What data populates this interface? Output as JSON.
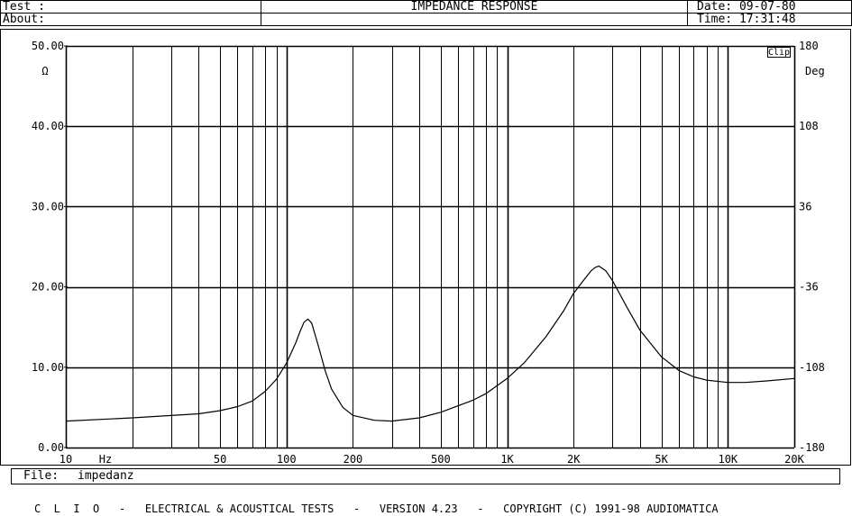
{
  "header": {
    "test_label": "Test :",
    "about_label": "About:",
    "title": "IMPEDANCE RESPONSE",
    "date": "Date: 09-07-80",
    "time": "Time: 17:31:48"
  },
  "file": {
    "label": "File:",
    "name": "impedanz"
  },
  "footer": {
    "text": "C  L  I  O   -   ELECTRICAL & ACOUSTICAL TESTS   -   VERSION 4.23   -   COPYRIGHT (C) 1991-98 AUDIOMATICA"
  },
  "chart_data": {
    "type": "line",
    "title": "IMPEDANCE RESPONSE",
    "xscale": "log",
    "xlim": [
      10,
      20000
    ],
    "ylim": [
      0,
      50
    ],
    "y2lim": [
      -180,
      180
    ],
    "ylabel": "Ω",
    "y2label": "Deg",
    "x_unit_label": "Hz",
    "clip_label": "Clip",
    "grid": true,
    "x_ticks": [
      {
        "v": 10,
        "label": "10"
      },
      {
        "v": 50,
        "label": "50"
      },
      {
        "v": 100,
        "label": "100"
      },
      {
        "v": 200,
        "label": "200"
      },
      {
        "v": 500,
        "label": "500"
      },
      {
        "v": 1000,
        "label": "1K"
      },
      {
        "v": 2000,
        "label": "2K"
      },
      {
        "v": 5000,
        "label": "5K"
      },
      {
        "v": 10000,
        "label": "10K"
      },
      {
        "v": 20000,
        "label": "20K"
      }
    ],
    "y_ticks": [
      {
        "v": 0,
        "label": "0.00"
      },
      {
        "v": 10,
        "label": "10.00"
      },
      {
        "v": 20,
        "label": "20.00"
      },
      {
        "v": 30,
        "label": "30.00"
      },
      {
        "v": 40,
        "label": "40.00"
      },
      {
        "v": 50,
        "label": "50.00"
      }
    ],
    "y2_ticks": [
      {
        "v": -180,
        "label": "-180"
      },
      {
        "v": -108,
        "label": "-108"
      },
      {
        "v": -36,
        "label": "-36"
      },
      {
        "v": 36,
        "label": "36"
      },
      {
        "v": 108,
        "label": "108"
      },
      {
        "v": 180,
        "label": "180"
      }
    ],
    "series": [
      {
        "x": [
          10,
          20,
          40,
          50,
          60,
          70,
          80,
          90,
          100,
          110,
          115,
          120,
          125,
          130,
          140,
          150,
          160,
          180,
          200,
          250,
          300,
          400,
          500,
          600,
          700,
          800,
          1000,
          1200,
          1500,
          1800,
          2000,
          2200,
          2400,
          2500,
          2600,
          2800,
          3000,
          3500,
          4000,
          5000,
          6000,
          7000,
          8000,
          10000,
          12000,
          15000,
          20000
        ],
        "y": [
          3.3,
          3.7,
          4.2,
          4.6,
          5.1,
          5.8,
          7.0,
          8.5,
          10.5,
          13.0,
          14.4,
          15.6,
          16.0,
          15.5,
          12.5,
          9.5,
          7.3,
          5.0,
          4.0,
          3.4,
          3.3,
          3.7,
          4.4,
          5.2,
          5.9,
          6.7,
          8.6,
          10.6,
          13.8,
          17.0,
          19.2,
          20.7,
          22.0,
          22.4,
          22.6,
          22.0,
          20.8,
          17.4,
          14.6,
          11.3,
          9.6,
          8.8,
          8.4,
          8.1,
          8.1,
          8.3,
          8.6
        ]
      }
    ]
  }
}
